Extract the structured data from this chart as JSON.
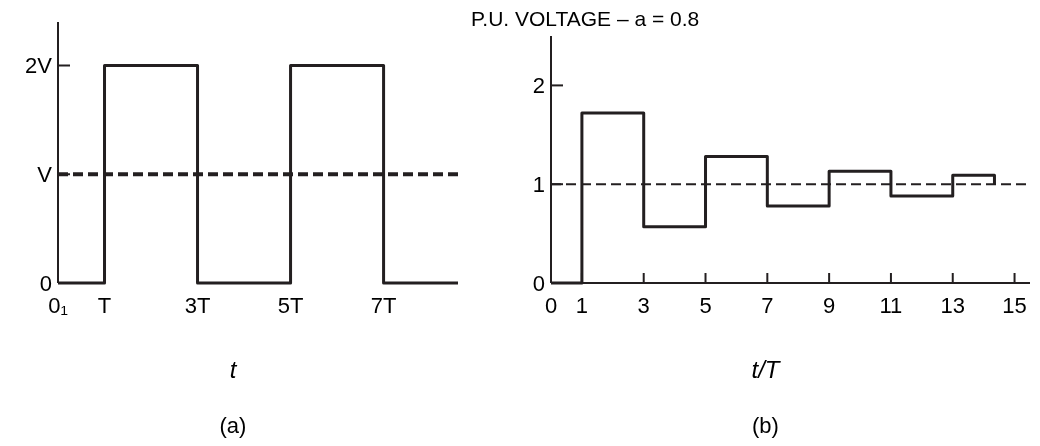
{
  "chart_data": [
    {
      "type": "step",
      "xlabel": "t",
      "x": [
        0,
        1,
        3,
        5,
        7,
        8.6
      ],
      "series": [
        {
          "color": "#231f20",
          "values": [
            0,
            2,
            0,
            2,
            0,
            0
          ]
        }
      ],
      "xlim": [
        0,
        8.6
      ],
      "ylim": [
        0,
        2.4
      ],
      "xticks": [
        {
          "value": 0,
          "label": "0₁"
        },
        {
          "value": 1,
          "label": "T"
        },
        {
          "value": 3,
          "label": "3T"
        },
        {
          "value": 5,
          "label": "5T"
        },
        {
          "value": 7,
          "label": "7T"
        }
      ],
      "yticks": [
        {
          "value": 0,
          "label": "0"
        },
        {
          "value": 1,
          "label": "V"
        },
        {
          "value": 2,
          "label": "2V"
        }
      ],
      "ref_lines": [
        {
          "axis": "y",
          "value": 1,
          "label": null,
          "line_style": "dashed"
        }
      ],
      "annotations": [
        "(a)"
      ],
      "grid": false
    },
    {
      "type": "step",
      "ylabel": "P.U. VOLTAGE – a = 0.8",
      "xlabel": "t/T",
      "x": [
        0,
        1,
        3,
        5,
        7,
        9,
        11,
        13,
        14.35
      ],
      "series": [
        {
          "color": "#231f20",
          "values": [
            0,
            1.72,
            0.57,
            1.28,
            0.78,
            1.13,
            0.88,
            1.09,
            1
          ]
        }
      ],
      "xlim": [
        0,
        15.5
      ],
      "ylim": [
        0,
        2.5
      ],
      "xticks": [
        0,
        1,
        3,
        5,
        7,
        9,
        11,
        13,
        15
      ],
      "yticks": [
        0,
        1,
        2
      ],
      "ref_lines": [
        {
          "axis": "y",
          "value": 1,
          "label": null,
          "line_style": "dashed"
        }
      ],
      "annotations": [
        "(b)"
      ],
      "grid": false
    }
  ]
}
